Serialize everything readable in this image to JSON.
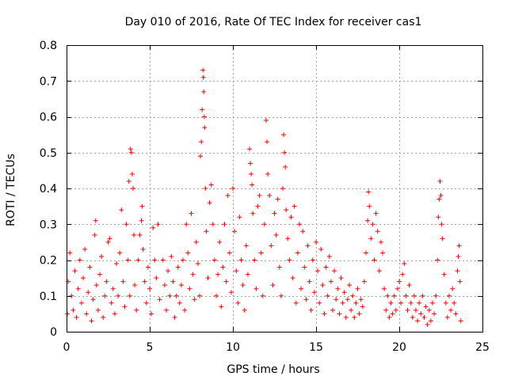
{
  "chart_data": {
    "type": "scatter",
    "title": "Day 010 of 2016, Rate Of TEC Index for receiver cas1",
    "xlabel": "GPS time / hours",
    "ylabel": "ROTI / TECUs",
    "xlim": [
      0,
      25
    ],
    "ylim": [
      0,
      0.8
    ],
    "xticks": [
      "0",
      "5",
      "10",
      "15",
      "20",
      "25"
    ],
    "yticks": [
      "0",
      "0.1",
      "0.2",
      "0.3",
      "0.4",
      "0.5",
      "0.6",
      "0.7",
      "0.8"
    ],
    "grid": true,
    "marker": "plus",
    "color": "#ff0000",
    "series": [
      {
        "points": [
          [
            0.05,
            0.05
          ],
          [
            0.1,
            0.14
          ],
          [
            0.2,
            0.22
          ],
          [
            0.3,
            0.1
          ],
          [
            0.4,
            0.06
          ],
          [
            0.5,
            0.17
          ],
          [
            0.6,
            0.04
          ],
          [
            0.7,
            0.12
          ],
          [
            0.8,
            0.2
          ],
          [
            0.9,
            0.08
          ],
          [
            1.0,
            0.15
          ],
          [
            1.1,
            0.23
          ],
          [
            1.2,
            0.05
          ],
          [
            1.3,
            0.11
          ],
          [
            1.4,
            0.18
          ],
          [
            1.5,
            0.03
          ],
          [
            1.6,
            0.09
          ],
          [
            1.7,
            0.27
          ],
          [
            1.75,
            0.31
          ],
          [
            1.8,
            0.13
          ],
          [
            1.9,
            0.06
          ],
          [
            2.0,
            0.16
          ],
          [
            2.1,
            0.21
          ],
          [
            2.2,
            0.04
          ],
          [
            2.3,
            0.1
          ],
          [
            2.4,
            0.14
          ],
          [
            2.5,
            0.25
          ],
          [
            2.6,
            0.26
          ],
          [
            2.7,
            0.08
          ],
          [
            2.8,
            0.12
          ],
          [
            2.9,
            0.05
          ],
          [
            3.0,
            0.19
          ],
          [
            3.1,
            0.1
          ],
          [
            3.2,
            0.22
          ],
          [
            3.3,
            0.34
          ],
          [
            3.4,
            0.14
          ],
          [
            3.5,
            0.07
          ],
          [
            3.6,
            0.3
          ],
          [
            3.7,
            0.2
          ],
          [
            3.75,
            0.42
          ],
          [
            3.8,
            0.1
          ],
          [
            3.85,
            0.51
          ],
          [
            3.9,
            0.5
          ],
          [
            3.95,
            0.44
          ],
          [
            4.0,
            0.4
          ],
          [
            4.05,
            0.27
          ],
          [
            4.1,
            0.13
          ],
          [
            4.2,
            0.06
          ],
          [
            4.3,
            0.2
          ],
          [
            4.4,
            0.27
          ],
          [
            4.5,
            0.31
          ],
          [
            4.55,
            0.35
          ],
          [
            4.6,
            0.23
          ],
          [
            4.7,
            0.14
          ],
          [
            4.8,
            0.08
          ],
          [
            4.9,
            0.18
          ],
          [
            5.0,
            0.12
          ],
          [
            5.1,
            0.05
          ],
          [
            5.2,
            0.29
          ],
          [
            5.3,
            0.2
          ],
          [
            5.4,
            0.15
          ],
          [
            5.5,
            0.3
          ],
          [
            5.6,
            0.09
          ],
          [
            5.8,
            0.2
          ],
          [
            5.9,
            0.13
          ],
          [
            6.0,
            0.06
          ],
          [
            6.1,
            0.17
          ],
          [
            6.2,
            0.1
          ],
          [
            6.3,
            0.21
          ],
          [
            6.4,
            0.14
          ],
          [
            6.5,
            0.04
          ],
          [
            6.6,
            0.1
          ],
          [
            6.7,
            0.18
          ],
          [
            6.8,
            0.08
          ],
          [
            6.9,
            0.13
          ],
          [
            7.0,
            0.2
          ],
          [
            7.1,
            0.06
          ],
          [
            7.2,
            0.3
          ],
          [
            7.3,
            0.22
          ],
          [
            7.4,
            0.12
          ],
          [
            7.5,
            0.33
          ],
          [
            7.6,
            0.16
          ],
          [
            7.7,
            0.09
          ],
          [
            7.8,
            0.25
          ],
          [
            7.9,
            0.19
          ],
          [
            8.0,
            0.1
          ],
          [
            8.05,
            0.49
          ],
          [
            8.1,
            0.53
          ],
          [
            8.15,
            0.62
          ],
          [
            8.2,
            0.73
          ],
          [
            8.22,
            0.71
          ],
          [
            8.25,
            0.67
          ],
          [
            8.28,
            0.6
          ],
          [
            8.3,
            0.57
          ],
          [
            8.35,
            0.4
          ],
          [
            8.4,
            0.28
          ],
          [
            8.5,
            0.15
          ],
          [
            8.6,
            0.36
          ],
          [
            8.7,
            0.41
          ],
          [
            8.8,
            0.3
          ],
          [
            8.9,
            0.2
          ],
          [
            9.0,
            0.1
          ],
          [
            9.1,
            0.16
          ],
          [
            9.2,
            0.25
          ],
          [
            9.3,
            0.07
          ],
          [
            9.4,
            0.18
          ],
          [
            9.5,
            0.3
          ],
          [
            9.6,
            0.14
          ],
          [
            9.7,
            0.38
          ],
          [
            9.8,
            0.22
          ],
          [
            9.9,
            0.11
          ],
          [
            10.0,
            0.4
          ],
          [
            10.1,
            0.28
          ],
          [
            10.2,
            0.17
          ],
          [
            10.3,
            0.08
          ],
          [
            10.4,
            0.32
          ],
          [
            10.5,
            0.2
          ],
          [
            10.6,
            0.13
          ],
          [
            10.7,
            0.06
          ],
          [
            10.8,
            0.24
          ],
          [
            10.9,
            0.16
          ],
          [
            11.0,
            0.51
          ],
          [
            11.05,
            0.47
          ],
          [
            11.1,
            0.44
          ],
          [
            11.15,
            0.41
          ],
          [
            11.2,
            0.33
          ],
          [
            11.3,
            0.2
          ],
          [
            11.4,
            0.12
          ],
          [
            11.5,
            0.35
          ],
          [
            11.6,
            0.38
          ],
          [
            11.7,
            0.22
          ],
          [
            11.8,
            0.1
          ],
          [
            11.9,
            0.3
          ],
          [
            12.0,
            0.59
          ],
          [
            12.05,
            0.53
          ],
          [
            12.1,
            0.44
          ],
          [
            12.2,
            0.38
          ],
          [
            12.3,
            0.24
          ],
          [
            12.4,
            0.13
          ],
          [
            12.5,
            0.33
          ],
          [
            12.6,
            0.27
          ],
          [
            12.7,
            0.37
          ],
          [
            12.8,
            0.18
          ],
          [
            12.9,
            0.1
          ],
          [
            13.0,
            0.4
          ],
          [
            13.05,
            0.55
          ],
          [
            13.1,
            0.5
          ],
          [
            13.15,
            0.46
          ],
          [
            13.2,
            0.34
          ],
          [
            13.3,
            0.26
          ],
          [
            13.4,
            0.2
          ],
          [
            13.5,
            0.32
          ],
          [
            13.6,
            0.15
          ],
          [
            13.7,
            0.35
          ],
          [
            13.8,
            0.08
          ],
          [
            13.9,
            0.22
          ],
          [
            14.0,
            0.3
          ],
          [
            14.1,
            0.12
          ],
          [
            14.2,
            0.28
          ],
          [
            14.3,
            0.18
          ],
          [
            14.4,
            0.09
          ],
          [
            14.5,
            0.24
          ],
          [
            14.6,
            0.14
          ],
          [
            14.7,
            0.06
          ],
          [
            14.8,
            0.2
          ],
          [
            14.9,
            0.11
          ],
          [
            15.0,
            0.25
          ],
          [
            15.1,
            0.17
          ],
          [
            15.2,
            0.08
          ],
          [
            15.3,
            0.23
          ],
          [
            15.4,
            0.13
          ],
          [
            15.5,
            0.05
          ],
          [
            15.6,
            0.18
          ],
          [
            15.7,
            0.1
          ],
          [
            15.8,
            0.21
          ],
          [
            15.9,
            0.14
          ],
          [
            16.0,
            0.06
          ],
          [
            16.1,
            0.17
          ],
          [
            16.2,
            0.09
          ],
          [
            16.3,
            0.12
          ],
          [
            16.4,
            0.05
          ],
          [
            16.5,
            0.15
          ],
          [
            16.6,
            0.08
          ],
          [
            16.7,
            0.11
          ],
          [
            16.8,
            0.04
          ],
          [
            16.9,
            0.09
          ],
          [
            17.0,
            0.13
          ],
          [
            17.1,
            0.06
          ],
          [
            17.2,
            0.1
          ],
          [
            17.3,
            0.04
          ],
          [
            17.4,
            0.08
          ],
          [
            17.5,
            0.12
          ],
          [
            17.6,
            0.05
          ],
          [
            17.7,
            0.09
          ],
          [
            17.8,
            0.07
          ],
          [
            17.9,
            0.14
          ],
          [
            18.0,
            0.22
          ],
          [
            18.1,
            0.31
          ],
          [
            18.15,
            0.39
          ],
          [
            18.2,
            0.35
          ],
          [
            18.3,
            0.26
          ],
          [
            18.4,
            0.3
          ],
          [
            18.5,
            0.2
          ],
          [
            18.6,
            0.33
          ],
          [
            18.7,
            0.28
          ],
          [
            18.8,
            0.17
          ],
          [
            18.9,
            0.25
          ],
          [
            19.0,
            0.22
          ],
          [
            19.1,
            0.12
          ],
          [
            19.2,
            0.06
          ],
          [
            19.3,
            0.1
          ],
          [
            19.4,
            0.04
          ],
          [
            19.5,
            0.08
          ],
          [
            19.6,
            0.05
          ],
          [
            19.7,
            0.1
          ],
          [
            19.8,
            0.06
          ],
          [
            19.9,
            0.12
          ],
          [
            20.0,
            0.14
          ],
          [
            20.1,
            0.08
          ],
          [
            20.2,
            0.16
          ],
          [
            20.3,
            0.19
          ],
          [
            20.4,
            0.1
          ],
          [
            20.5,
            0.06
          ],
          [
            20.6,
            0.13
          ],
          [
            20.7,
            0.08
          ],
          [
            20.8,
            0.04
          ],
          [
            20.9,
            0.1
          ],
          [
            21.0,
            0.06
          ],
          [
            21.1,
            0.03
          ],
          [
            21.2,
            0.08
          ],
          [
            21.3,
            0.05
          ],
          [
            21.4,
            0.1
          ],
          [
            21.5,
            0.04
          ],
          [
            21.6,
            0.07
          ],
          [
            21.7,
            0.02
          ],
          [
            21.8,
            0.06
          ],
          [
            21.9,
            0.03
          ],
          [
            22.0,
            0.08
          ],
          [
            22.1,
            0.05
          ],
          [
            22.2,
            0.1
          ],
          [
            22.3,
            0.2
          ],
          [
            22.35,
            0.32
          ],
          [
            22.4,
            0.37
          ],
          [
            22.45,
            0.42
          ],
          [
            22.5,
            0.38
          ],
          [
            22.55,
            0.3
          ],
          [
            22.6,
            0.26
          ],
          [
            22.7,
            0.16
          ],
          [
            22.8,
            0.08
          ],
          [
            22.9,
            0.04
          ],
          [
            23.0,
            0.1
          ],
          [
            23.1,
            0.06
          ],
          [
            23.2,
            0.12
          ],
          [
            23.3,
            0.08
          ],
          [
            23.4,
            0.05
          ],
          [
            23.5,
            0.17
          ],
          [
            23.55,
            0.21
          ],
          [
            23.6,
            0.24
          ],
          [
            23.65,
            0.14
          ],
          [
            23.7,
            0.03
          ]
        ]
      }
    ]
  }
}
